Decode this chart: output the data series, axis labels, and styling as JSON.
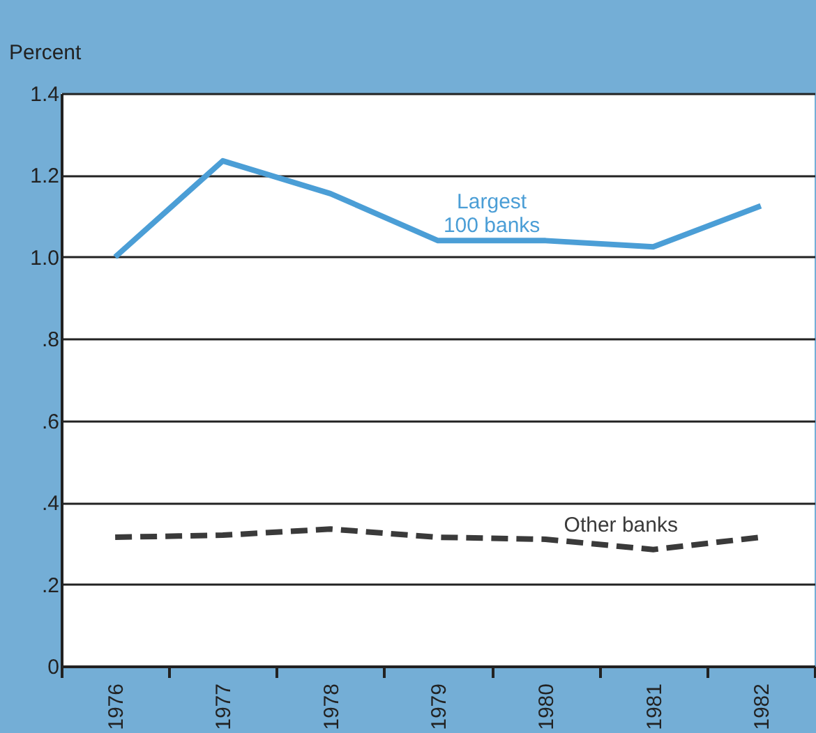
{
  "chart_data": {
    "type": "line",
    "ylabel": "Percent",
    "categories": [
      "1976",
      "1977",
      "1978",
      "1979",
      "1980",
      "1981",
      "1982"
    ],
    "series": [
      {
        "name": "Largest 100 banks",
        "color": "#4b9ed6",
        "line_style": "solid",
        "values": [
          1.0,
          1.235,
          1.155,
          1.04,
          1.04,
          1.025,
          1.125
        ]
      },
      {
        "name": "Other banks",
        "color": "#3a3a3a",
        "line_style": "dashed",
        "values": [
          0.315,
          0.32,
          0.335,
          0.315,
          0.31,
          0.285,
          0.315
        ]
      }
    ],
    "ylim": [
      0,
      1.4
    ],
    "yticks": [
      0,
      {
        "value": 0.2,
        "label": ".2"
      },
      {
        "value": 0.4,
        "label": ".4"
      },
      {
        "value": 0.6,
        "label": ".6"
      },
      {
        "value": 0.8,
        "label": ".8"
      },
      {
        "value": 1.0,
        "label": "1.0"
      },
      {
        "value": 1.2,
        "label": "1.2"
      },
      {
        "value": 1.4,
        "label": "1.4"
      }
    ],
    "grid": "y",
    "legend": false,
    "marker": "none"
  }
}
